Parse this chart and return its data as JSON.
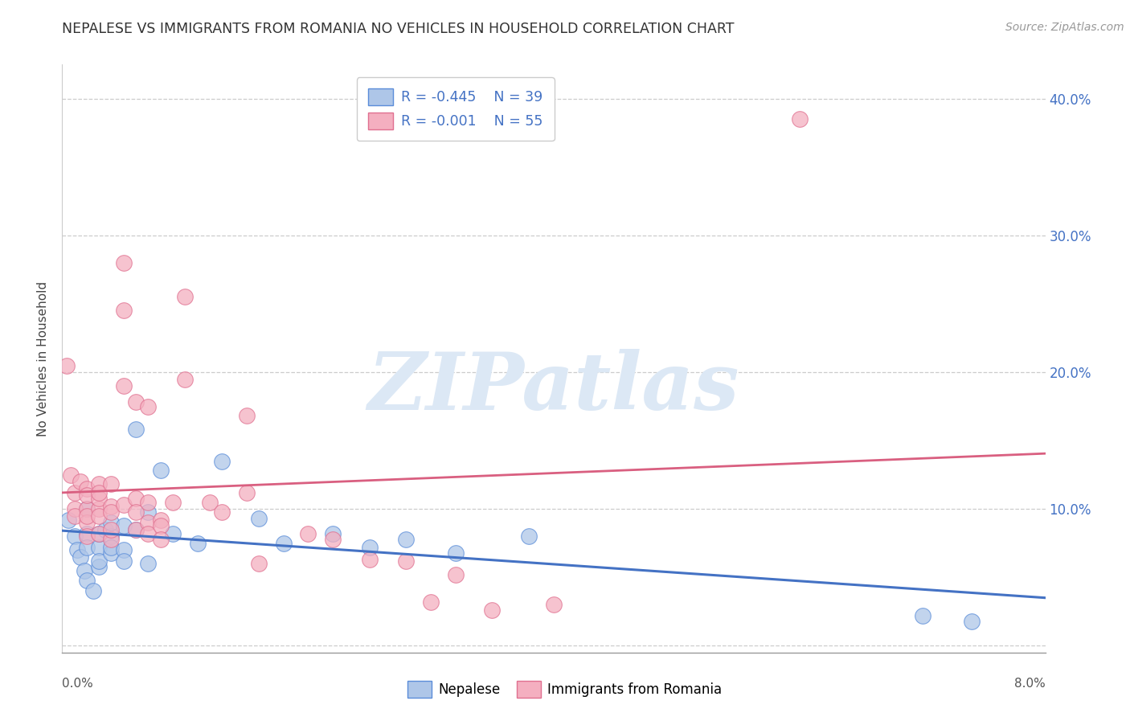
{
  "title": "NEPALESE VS IMMIGRANTS FROM ROMANIA NO VEHICLES IN HOUSEHOLD CORRELATION CHART",
  "source": "Source: ZipAtlas.com",
  "ylabel": "No Vehicles in Household",
  "yticks": [
    0.0,
    0.1,
    0.2,
    0.3,
    0.4
  ],
  "ytick_labels": [
    "",
    "10.0%",
    "20.0%",
    "30.0%",
    "40.0%"
  ],
  "xlim": [
    0.0,
    0.08
  ],
  "ylim": [
    -0.005,
    0.425
  ],
  "legend_r_nepalese": "R = -0.445",
  "legend_n_nepalese": "N = 39",
  "legend_r_romania": "R = -0.001",
  "legend_n_romania": "N = 55",
  "nepalese_color": "#aec6e8",
  "romania_color": "#f4afc0",
  "nepalese_edge_color": "#5b8dd9",
  "romania_edge_color": "#e07090",
  "nepalese_line_color": "#4472c4",
  "romania_line_color": "#d95f80",
  "watermark_color": "#dce8f5",
  "background_color": "#ffffff",
  "nepalese_x": [
    0.0005,
    0.001,
    0.0012,
    0.0015,
    0.0018,
    0.002,
    0.002,
    0.002,
    0.002,
    0.0025,
    0.003,
    0.003,
    0.003,
    0.003,
    0.0035,
    0.004,
    0.004,
    0.004,
    0.004,
    0.005,
    0.005,
    0.005,
    0.006,
    0.006,
    0.007,
    0.007,
    0.008,
    0.009,
    0.011,
    0.013,
    0.016,
    0.018,
    0.022,
    0.025,
    0.028,
    0.032,
    0.038,
    0.07,
    0.074
  ],
  "nepalese_y": [
    0.092,
    0.08,
    0.07,
    0.065,
    0.055,
    0.1,
    0.082,
    0.072,
    0.048,
    0.04,
    0.072,
    0.058,
    0.082,
    0.062,
    0.085,
    0.08,
    0.09,
    0.068,
    0.072,
    0.088,
    0.07,
    0.062,
    0.158,
    0.085,
    0.098,
    0.06,
    0.128,
    0.082,
    0.075,
    0.135,
    0.093,
    0.075,
    0.082,
    0.072,
    0.078,
    0.068,
    0.08,
    0.022,
    0.018
  ],
  "romania_x": [
    0.0004,
    0.0007,
    0.001,
    0.001,
    0.001,
    0.0015,
    0.002,
    0.002,
    0.002,
    0.002,
    0.002,
    0.002,
    0.003,
    0.003,
    0.003,
    0.003,
    0.003,
    0.003,
    0.004,
    0.004,
    0.004,
    0.004,
    0.004,
    0.005,
    0.005,
    0.005,
    0.005,
    0.006,
    0.006,
    0.006,
    0.006,
    0.007,
    0.007,
    0.007,
    0.007,
    0.008,
    0.008,
    0.008,
    0.009,
    0.01,
    0.01,
    0.012,
    0.013,
    0.015,
    0.015,
    0.016,
    0.02,
    0.022,
    0.025,
    0.028,
    0.03,
    0.032,
    0.035,
    0.04,
    0.06
  ],
  "romania_y": [
    0.205,
    0.125,
    0.1,
    0.112,
    0.095,
    0.12,
    0.1,
    0.115,
    0.09,
    0.095,
    0.08,
    0.11,
    0.1,
    0.118,
    0.095,
    0.108,
    0.082,
    0.112,
    0.102,
    0.118,
    0.078,
    0.085,
    0.098,
    0.103,
    0.28,
    0.245,
    0.19,
    0.178,
    0.108,
    0.098,
    0.085,
    0.105,
    0.09,
    0.082,
    0.175,
    0.092,
    0.088,
    0.078,
    0.105,
    0.255,
    0.195,
    0.105,
    0.098,
    0.168,
    0.112,
    0.06,
    0.082,
    0.078,
    0.063,
    0.062,
    0.032,
    0.052,
    0.026,
    0.03,
    0.385
  ]
}
